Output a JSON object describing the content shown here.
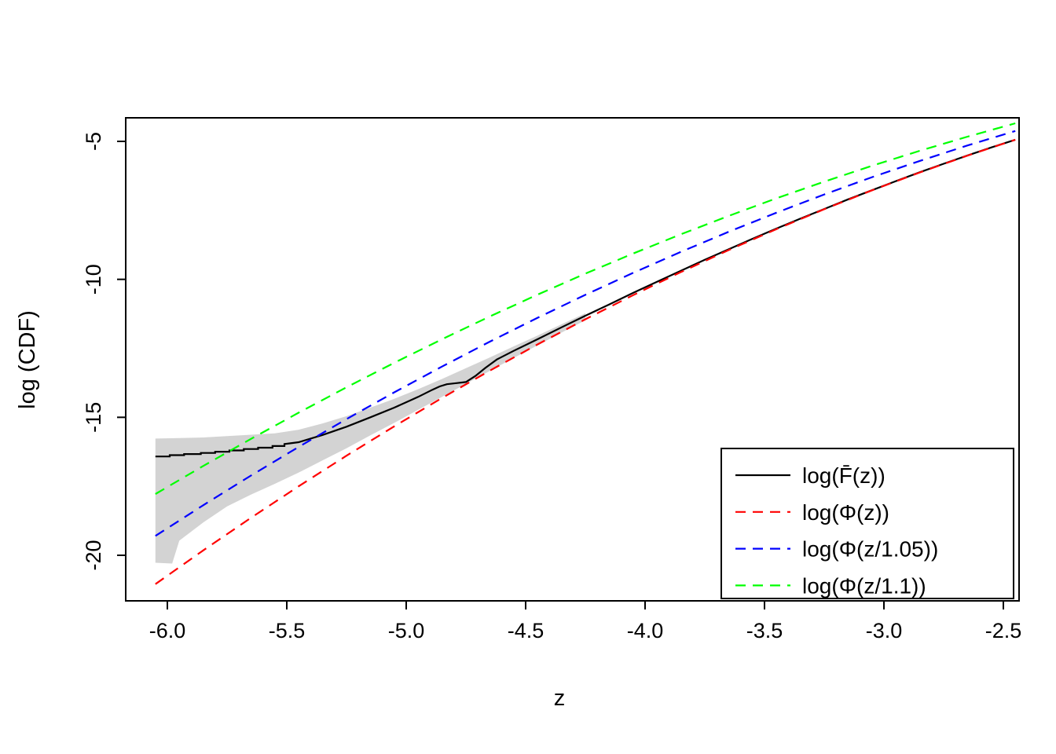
{
  "figure": {
    "background": "#ffffff"
  },
  "chart_data": {
    "type": "line",
    "title": "",
    "xlabel": "z",
    "ylabel": "log (CDF)",
    "xlim": [
      -6.17,
      -2.43
    ],
    "ylim": [
      -21.65,
      -4.15
    ],
    "grid": false,
    "x_ticks": [
      -6.0,
      -5.5,
      -5.0,
      -4.5,
      -4.0,
      -3.5,
      -3.0,
      -2.5
    ],
    "x_tick_labels": [
      "-6.0",
      "-5.5",
      "-5.0",
      "-4.5",
      "-4.0",
      "-3.5",
      "-3.0",
      "-2.5"
    ],
    "y_ticks": [
      -5,
      -10,
      -15,
      -20
    ],
    "y_tick_labels": [
      "-5",
      "-10",
      "-15",
      "-20"
    ],
    "band": {
      "color": "#D3D3D3",
      "upper": [
        [
          -6.05,
          -15.77
        ],
        [
          -5.95,
          -15.75
        ],
        [
          -5.85,
          -15.73
        ],
        [
          -5.75,
          -15.68
        ],
        [
          -5.65,
          -15.63
        ],
        [
          -5.55,
          -15.58
        ],
        [
          -5.45,
          -15.45
        ],
        [
          -5.35,
          -15.22
        ],
        [
          -5.25,
          -14.96
        ],
        [
          -5.15,
          -14.65
        ],
        [
          -5.05,
          -14.33
        ],
        [
          -4.95,
          -13.98
        ],
        [
          -4.85,
          -13.61
        ],
        [
          -4.75,
          -13.22
        ],
        [
          -4.65,
          -12.83
        ],
        [
          -4.55,
          -12.43
        ],
        [
          -4.45,
          -12.04
        ],
        [
          -4.35,
          -11.63
        ],
        [
          -4.25,
          -11.23
        ]
      ],
      "lower": [
        [
          -6.05,
          -20.27
        ],
        [
          -5.98,
          -20.3
        ],
        [
          -5.95,
          -19.47
        ],
        [
          -5.85,
          -18.81
        ],
        [
          -5.75,
          -18.23
        ],
        [
          -5.65,
          -17.8
        ],
        [
          -5.55,
          -17.41
        ],
        [
          -5.45,
          -17.0
        ],
        [
          -5.35,
          -16.56
        ],
        [
          -5.25,
          -16.12
        ],
        [
          -5.15,
          -15.65
        ],
        [
          -5.05,
          -15.2
        ],
        [
          -4.95,
          -14.73
        ],
        [
          -4.85,
          -14.26
        ],
        [
          -4.75,
          -13.79
        ],
        [
          -4.65,
          -13.32
        ],
        [
          -4.55,
          -12.85
        ],
        [
          -4.45,
          -12.39
        ],
        [
          -4.35,
          -11.93
        ],
        [
          -4.25,
          -11.48
        ]
      ]
    },
    "series": [
      {
        "id": "empirical",
        "label": "log(F̄(z))",
        "color": "#000000",
        "dash": "solid",
        "points": [
          [
            -6.05,
            -16.42
          ],
          [
            -5.99,
            -16.42
          ],
          [
            -5.99,
            -16.37
          ],
          [
            -5.93,
            -16.37
          ],
          [
            -5.93,
            -16.33
          ],
          [
            -5.86,
            -16.33
          ],
          [
            -5.86,
            -16.29
          ],
          [
            -5.8,
            -16.29
          ],
          [
            -5.8,
            -16.25
          ],
          [
            -5.74,
            -16.25
          ],
          [
            -5.74,
            -16.2
          ],
          [
            -5.68,
            -16.2
          ],
          [
            -5.68,
            -16.15
          ],
          [
            -5.62,
            -16.15
          ],
          [
            -5.62,
            -16.1
          ],
          [
            -5.56,
            -16.1
          ],
          [
            -5.56,
            -16.04
          ],
          [
            -5.51,
            -16.04
          ],
          [
            -5.51,
            -15.97
          ],
          [
            -5.45,
            -15.9
          ],
          [
            -5.35,
            -15.64
          ],
          [
            -5.25,
            -15.34
          ],
          [
            -5.15,
            -15.0
          ],
          [
            -5.05,
            -14.65
          ],
          [
            -4.95,
            -14.26
          ],
          [
            -4.89,
            -14.0
          ],
          [
            -4.86,
            -13.88
          ],
          [
            -4.83,
            -13.8
          ],
          [
            -4.79,
            -13.76
          ],
          [
            -4.75,
            -13.72
          ],
          [
            -4.71,
            -13.5
          ],
          [
            -4.67,
            -13.22
          ],
          [
            -4.62,
            -12.9
          ],
          [
            -4.55,
            -12.59
          ],
          [
            -4.45,
            -12.17
          ],
          [
            -4.35,
            -11.74
          ],
          [
            -4.25,
            -11.32
          ],
          [
            -4.15,
            -10.91
          ],
          [
            -4.05,
            -10.49
          ],
          [
            -3.95,
            -10.09
          ],
          [
            -3.85,
            -9.69
          ],
          [
            -3.75,
            -9.29
          ],
          [
            -3.65,
            -8.91
          ],
          [
            -3.55,
            -8.53
          ],
          [
            -3.45,
            -8.16
          ],
          [
            -3.35,
            -7.8
          ],
          [
            -3.25,
            -7.45
          ],
          [
            -3.15,
            -7.1
          ],
          [
            -3.05,
            -6.77
          ],
          [
            -2.95,
            -6.44
          ],
          [
            -2.85,
            -6.12
          ],
          [
            -2.75,
            -5.81
          ],
          [
            -2.65,
            -5.51
          ],
          [
            -2.55,
            -5.22
          ],
          [
            -2.45,
            -4.94
          ]
        ]
      },
      {
        "id": "phi",
        "label": "log(Φ(z))",
        "color": "#FF0000",
        "dash": "dashed",
        "points": [
          [
            -6.05,
            -21.046
          ],
          [
            -5.85,
            -19.824
          ],
          [
            -5.65,
            -18.641
          ],
          [
            -5.45,
            -17.497
          ],
          [
            -5.25,
            -16.392
          ],
          [
            -5.05,
            -15.326
          ],
          [
            -4.85,
            -14.298
          ],
          [
            -4.65,
            -13.309
          ],
          [
            -4.45,
            -12.358
          ],
          [
            -4.25,
            -11.446
          ],
          [
            -4.05,
            -10.573
          ],
          [
            -3.85,
            -9.737
          ],
          [
            -3.65,
            -8.939
          ],
          [
            -3.45,
            -8.18
          ],
          [
            -3.25,
            -7.458
          ],
          [
            -3.05,
            -6.773
          ],
          [
            -2.85,
            -6.126
          ],
          [
            -2.65,
            -5.515
          ],
          [
            -2.45,
            -4.941
          ]
        ]
      },
      {
        "id": "phi-1-05",
        "label": "log(Φ(z/1.05))",
        "color": "#0000FF",
        "dash": "dashed",
        "points": [
          [
            -6.05,
            -19.298
          ],
          [
            -5.85,
            -18.187
          ],
          [
            -5.65,
            -17.111
          ],
          [
            -5.45,
            -16.071
          ],
          [
            -5.25,
            -15.065
          ],
          [
            -5.05,
            -14.095
          ],
          [
            -4.85,
            -13.159
          ],
          [
            -4.65,
            -12.259
          ],
          [
            -4.45,
            -11.393
          ],
          [
            -4.25,
            -10.563
          ],
          [
            -4.05,
            -9.766
          ],
          [
            -3.85,
            -9.004
          ],
          [
            -3.65,
            -8.277
          ],
          [
            -3.45,
            -7.584
          ],
          [
            -3.25,
            -6.925
          ],
          [
            -3.05,
            -6.299
          ],
          [
            -2.85,
            -5.708
          ],
          [
            -2.65,
            -5.149
          ],
          [
            -2.45,
            -4.624
          ]
        ]
      },
      {
        "id": "phi-1-1",
        "label": "log(Φ(z/1.1))",
        "color": "#00FF00",
        "dash": "dashed",
        "points": [
          [
            -6.05,
            -17.779
          ],
          [
            -5.85,
            -16.764
          ],
          [
            -5.65,
            -15.781
          ],
          [
            -5.45,
            -14.83
          ],
          [
            -5.25,
            -13.911
          ],
          [
            -5.05,
            -13.024
          ],
          [
            -4.85,
            -12.169
          ],
          [
            -4.65,
            -11.345
          ],
          [
            -4.45,
            -10.553
          ],
          [
            -4.25,
            -9.793
          ],
          [
            -4.05,
            -9.064
          ],
          [
            -3.85,
            -8.366
          ],
          [
            -3.65,
            -7.7
          ],
          [
            -3.45,
            -7.064
          ],
          [
            -3.25,
            -6.459
          ],
          [
            -3.05,
            -5.886
          ],
          [
            -2.85,
            -5.342
          ],
          [
            -2.65,
            -4.829
          ],
          [
            -2.45,
            -4.346
          ]
        ]
      }
    ],
    "legend": {
      "position": "bottom-right",
      "border": true
    }
  }
}
